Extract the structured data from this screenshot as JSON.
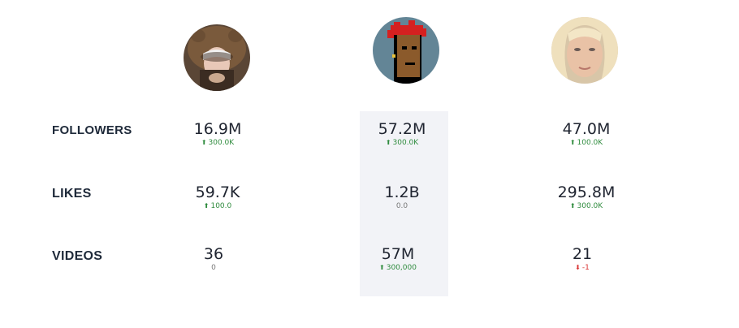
{
  "profiles": [
    {
      "avatar_icon": "bear-hoodie-avatar-icon"
    },
    {
      "avatar_icon": "pixel-punk-avatar-icon"
    },
    {
      "avatar_icon": "portrait-avatar-icon"
    }
  ],
  "rows": [
    {
      "label": "FOLLOWERS",
      "cells": [
        {
          "value": "16.9M",
          "delta": "300.0K",
          "trend": "up"
        },
        {
          "value": "57.2M",
          "delta": "300.0K",
          "trend": "up"
        },
        {
          "value": "47.0M",
          "delta": "100.0K",
          "trend": "up"
        }
      ]
    },
    {
      "label": "LIKES",
      "cells": [
        {
          "value": "59.7K",
          "delta": "100.0",
          "trend": "up"
        },
        {
          "value": "1.2B",
          "delta": "0.0",
          "trend": "neutral"
        },
        {
          "value": "295.8M",
          "delta": "300.0K",
          "trend": "up"
        }
      ]
    },
    {
      "label": "VIDEOS",
      "cells": [
        {
          "value": "36",
          "delta": "0",
          "trend": "neutral"
        },
        {
          "value": "57M",
          "delta": "300,000",
          "trend": "up"
        },
        {
          "value": "21",
          "delta": "-1",
          "trend": "down"
        }
      ]
    }
  ],
  "colors": {
    "up": "#2e8b3d",
    "down": "#d93232",
    "neutral": "#777777",
    "highlight_column": "#f2f3f7",
    "label": "#1f2a3a"
  },
  "icons": {
    "up": "arrow-up-icon",
    "down": "arrow-down-icon"
  }
}
